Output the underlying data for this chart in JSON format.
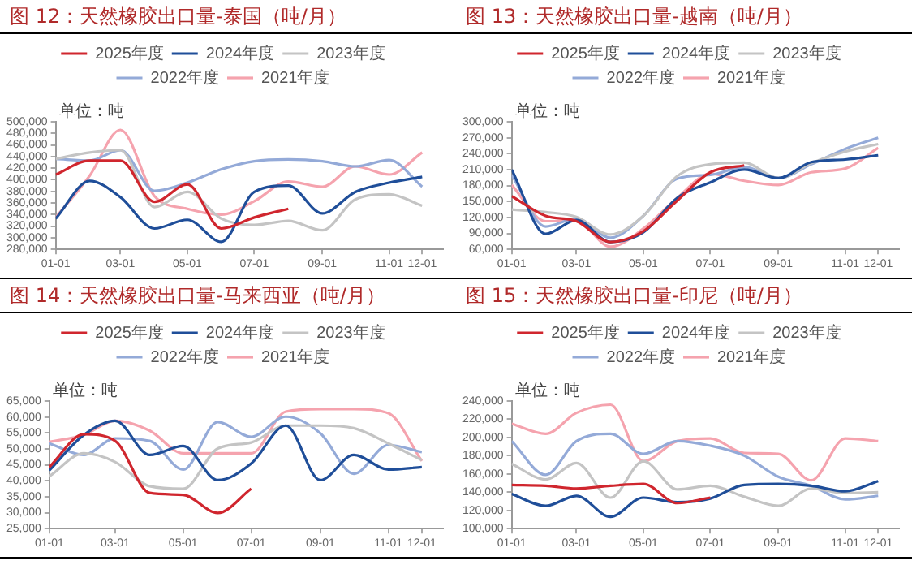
{
  "chart_data": [
    {
      "type": "line",
      "title": "图 12：天然橡胶出口量-泰国（吨/月）",
      "legend": "top",
      "marker": "none",
      "annotations": [
        "单位：吨"
      ],
      "x": [
        "--01-01",
        "--02-01",
        "--03-01",
        "--04-01",
        "--05-01",
        "--06-01",
        "--07-01",
        "--08-01",
        "--09-01",
        "--10-01",
        "--11-01",
        "--12-01"
      ],
      "xlim": [
        "--01-01",
        "--12-20"
      ],
      "xticks": [
        {
          "value": "--01-01",
          "label": "01-01"
        },
        {
          "value": "--03-01",
          "label": "03-01"
        },
        {
          "value": "--05-01",
          "label": "05-01"
        },
        {
          "value": "--07-01",
          "label": "07-01"
        },
        {
          "value": "--09-01",
          "label": "09-01"
        },
        {
          "value": "--11-01",
          "label": "11-01"
        },
        {
          "value": "--12-01",
          "label": "12-01"
        }
      ],
      "ylim": [
        280000,
        500000
      ],
      "yticks": [
        {
          "value": 280000,
          "label": "280,000"
        },
        {
          "value": 300000,
          "label": "300,000"
        },
        {
          "value": 320000,
          "label": "320,000"
        },
        {
          "value": 340000,
          "label": "340,000"
        },
        {
          "value": 360000,
          "label": "360,000"
        },
        {
          "value": 380000,
          "label": "380,000"
        },
        {
          "value": 400000,
          "label": "400,000"
        },
        {
          "value": 420000,
          "label": "420,000"
        },
        {
          "value": 440000,
          "label": "440,000"
        },
        {
          "value": 460000,
          "label": "460,000"
        },
        {
          "value": 480000,
          "label": "480,000"
        },
        {
          "value": 500000,
          "label": "500,000"
        }
      ],
      "series": [
        {
          "name": "2025年度",
          "color": "#d0262e",
          "values": [
            409000,
            433000,
            433000,
            362000,
            392000,
            316000,
            335000,
            350000,
            null,
            null,
            null,
            null
          ]
        },
        {
          "name": "2024年度",
          "color": "#1f4e99",
          "values": [
            333000,
            398000,
            370000,
            316000,
            331000,
            293000,
            379000,
            390000,
            342000,
            379000,
            395000,
            405000
          ]
        },
        {
          "name": "2023年度",
          "color": "#c4c4c4",
          "values": [
            436000,
            447000,
            451000,
            353000,
            379000,
            333000,
            322000,
            329000,
            313000,
            366000,
            375000,
            355000
          ]
        },
        {
          "name": "2022年度",
          "color": "#94aad8",
          "values": [
            436000,
            433000,
            451000,
            381000,
            395000,
            418000,
            432000,
            435000,
            432000,
            423000,
            434000,
            388000
          ]
        },
        {
          "name": "2021年度",
          "color": "#f5a3ae",
          "values": [
            335000,
            407000,
            486000,
            372000,
            350000,
            340000,
            363000,
            397000,
            388000,
            423000,
            409000,
            447000
          ]
        }
      ]
    },
    {
      "type": "line",
      "title": "图 13：天然橡胶出口量-越南（吨/月）",
      "legend": "top",
      "marker": "none",
      "annotations": [
        "单位：吨"
      ],
      "x": [
        "--01-01",
        "--02-01",
        "--03-01",
        "--04-01",
        "--05-01",
        "--06-01",
        "--07-01",
        "--08-01",
        "--09-01",
        "--10-01",
        "--11-01",
        "--12-01"
      ],
      "xlim": [
        "--01-01",
        "--12-20"
      ],
      "xticks": [
        {
          "value": "--01-01",
          "label": "01-01"
        },
        {
          "value": "--03-01",
          "label": "03-01"
        },
        {
          "value": "--05-01",
          "label": "05-01"
        },
        {
          "value": "--07-01",
          "label": "07-01"
        },
        {
          "value": "--09-01",
          "label": "09-01"
        },
        {
          "value": "--11-01",
          "label": "11-01"
        },
        {
          "value": "--12-01",
          "label": "12-01"
        }
      ],
      "ylim": [
        60000,
        300000
      ],
      "yticks": [
        {
          "value": 60000,
          "label": "60,000"
        },
        {
          "value": 90000,
          "label": "90,000"
        },
        {
          "value": 120000,
          "label": "120,000"
        },
        {
          "value": 150000,
          "label": "150,000"
        },
        {
          "value": 180000,
          "label": "180,000"
        },
        {
          "value": 210000,
          "label": "210,000"
        },
        {
          "value": 240000,
          "label": "240,000"
        },
        {
          "value": 270000,
          "label": "270,000"
        },
        {
          "value": 300000,
          "label": "300,000"
        }
      ],
      "series": [
        {
          "name": "2025年度",
          "color": "#d0262e",
          "values": [
            160000,
            123000,
            113000,
            74000,
            94000,
            152000,
            205000,
            218000,
            null,
            null,
            null,
            null
          ]
        },
        {
          "name": "2024年度",
          "color": "#1f4e99",
          "values": [
            210000,
            89000,
            115000,
            74000,
            92000,
            157000,
            186000,
            210000,
            194000,
            224000,
            229000,
            237000
          ]
        },
        {
          "name": "2023年度",
          "color": "#c4c4c4",
          "values": [
            135000,
            130000,
            121000,
            88000,
            123000,
            198000,
            220000,
            223000,
            194000,
            222000,
            244000,
            258000
          ]
        },
        {
          "name": "2022年度",
          "color": "#94aad8",
          "values": [
            200000,
            103000,
            118000,
            82000,
            123000,
            193000,
            200000,
            215000,
            194000,
            220000,
            249000,
            270000
          ]
        },
        {
          "name": "2021年度",
          "color": "#f5a3ae",
          "values": [
            181000,
            113000,
            113000,
            65000,
            99000,
            157000,
            202000,
            189000,
            181000,
            205000,
            212000,
            251000
          ]
        }
      ]
    },
    {
      "type": "line",
      "title": "图 14：天然橡胶出口量-马来西亚（吨/月）",
      "legend": "top",
      "marker": "none",
      "annotations": [
        "单位：吨"
      ],
      "x": [
        "--01-01",
        "--02-01",
        "--03-01",
        "--04-01",
        "--05-01",
        "--06-01",
        "--07-01",
        "--08-01",
        "--09-01",
        "--10-01",
        "--11-01",
        "--12-01"
      ],
      "xlim": [
        "--01-01",
        "--12-20"
      ],
      "xticks": [
        {
          "value": "--01-01",
          "label": "01-01"
        },
        {
          "value": "--03-01",
          "label": "03-01"
        },
        {
          "value": "--05-01",
          "label": "05-01"
        },
        {
          "value": "--07-01",
          "label": "07-01"
        },
        {
          "value": "--09-01",
          "label": "09-01"
        },
        {
          "value": "--11-01",
          "label": "11-01"
        },
        {
          "value": "--12-01",
          "label": "12-01"
        }
      ],
      "ylim": [
        25000,
        65000
      ],
      "yticks": [
        {
          "value": 25000,
          "label": "25,000"
        },
        {
          "value": 30000,
          "label": "30,000"
        },
        {
          "value": 35000,
          "label": "35,000"
        },
        {
          "value": 40000,
          "label": "40,000"
        },
        {
          "value": 45000,
          "label": "45,000"
        },
        {
          "value": 50000,
          "label": "50,000"
        },
        {
          "value": 55000,
          "label": "55,000"
        },
        {
          "value": 60000,
          "label": "60,000"
        },
        {
          "value": 65000,
          "label": "65,000"
        }
      ],
      "series": [
        {
          "name": "2025年度",
          "color": "#d0262e",
          "values": [
            44300,
            54600,
            52500,
            36200,
            35600,
            29900,
            37500,
            null,
            null,
            null,
            null,
            null
          ]
        },
        {
          "name": "2024年度",
          "color": "#1f4e99",
          "values": [
            43300,
            54400,
            58800,
            48100,
            50900,
            40200,
            45400,
            57300,
            40200,
            48100,
            43500,
            44300
          ]
        },
        {
          "name": "2023年度",
          "color": "#c4c4c4",
          "values": [
            41400,
            48600,
            45900,
            38300,
            37500,
            50100,
            52000,
            57300,
            57300,
            56500,
            51700,
            46500
          ]
        },
        {
          "name": "2022年度",
          "color": "#94aad8",
          "values": [
            51700,
            48100,
            53300,
            52500,
            43500,
            58400,
            53800,
            60100,
            54900,
            42200,
            51200,
            49000
          ]
        },
        {
          "name": "2021年度",
          "color": "#f5a3ae",
          "values": [
            52200,
            54400,
            58800,
            55700,
            48600,
            48600,
            48600,
            61700,
            62500,
            62500,
            61200,
            46200
          ]
        }
      ]
    },
    {
      "type": "line",
      "title": "图 15：天然橡胶出口量-印尼（吨/月）",
      "legend": "top",
      "marker": "none",
      "annotations": [
        "单位：吨"
      ],
      "x": [
        "--01-01",
        "--02-01",
        "--03-01",
        "--04-01",
        "--05-01",
        "--06-01",
        "--07-01",
        "--08-01",
        "--09-01",
        "--10-01",
        "--11-01",
        "--12-01"
      ],
      "xlim": [
        "--01-01",
        "--12-20"
      ],
      "xticks": [
        {
          "value": "--01-01",
          "label": "01-01"
        },
        {
          "value": "--03-01",
          "label": "03-01"
        },
        {
          "value": "--05-01",
          "label": "05-01"
        },
        {
          "value": "--07-01",
          "label": "07-01"
        },
        {
          "value": "--09-01",
          "label": "09-01"
        },
        {
          "value": "--11-01",
          "label": "11-01"
        },
        {
          "value": "--12-01",
          "label": "12-01"
        }
      ],
      "ylim": [
        100000,
        240000
      ],
      "yticks": [
        {
          "value": 100000,
          "label": "100,000"
        },
        {
          "value": 120000,
          "label": "120,000"
        },
        {
          "value": 140000,
          "label": "140,000"
        },
        {
          "value": 160000,
          "label": "160,000"
        },
        {
          "value": 180000,
          "label": "180,000"
        },
        {
          "value": 200000,
          "label": "200,000"
        },
        {
          "value": 220000,
          "label": "220,000"
        },
        {
          "value": 240000,
          "label": "240,000"
        }
      ],
      "series": [
        {
          "name": "2025年度",
          "color": "#d0262e",
          "values": [
            148000,
            147000,
            144000,
            147000,
            149000,
            128000,
            134000,
            null,
            null,
            null,
            null,
            null
          ]
        },
        {
          "name": "2024年度",
          "color": "#1f4e99",
          "values": [
            138000,
            125000,
            136000,
            113000,
            134000,
            129000,
            133000,
            148000,
            149000,
            147000,
            141000,
            152000
          ]
        },
        {
          "name": "2023年度",
          "color": "#c4c4c4",
          "values": [
            171000,
            154000,
            172000,
            134000,
            174000,
            143000,
            147000,
            135000,
            125000,
            144000,
            139000,
            140000
          ]
        },
        {
          "name": "2022年度",
          "color": "#94aad8",
          "values": [
            196000,
            159000,
            196000,
            204000,
            182000,
            196000,
            191000,
            180000,
            157000,
            147000,
            132000,
            136000
          ]
        },
        {
          "name": "2021年度",
          "color": "#f5a3ae",
          "values": [
            215000,
            204000,
            227000,
            236000,
            174000,
            196000,
            199000,
            183000,
            182000,
            153000,
            199000,
            196000
          ]
        }
      ]
    }
  ]
}
